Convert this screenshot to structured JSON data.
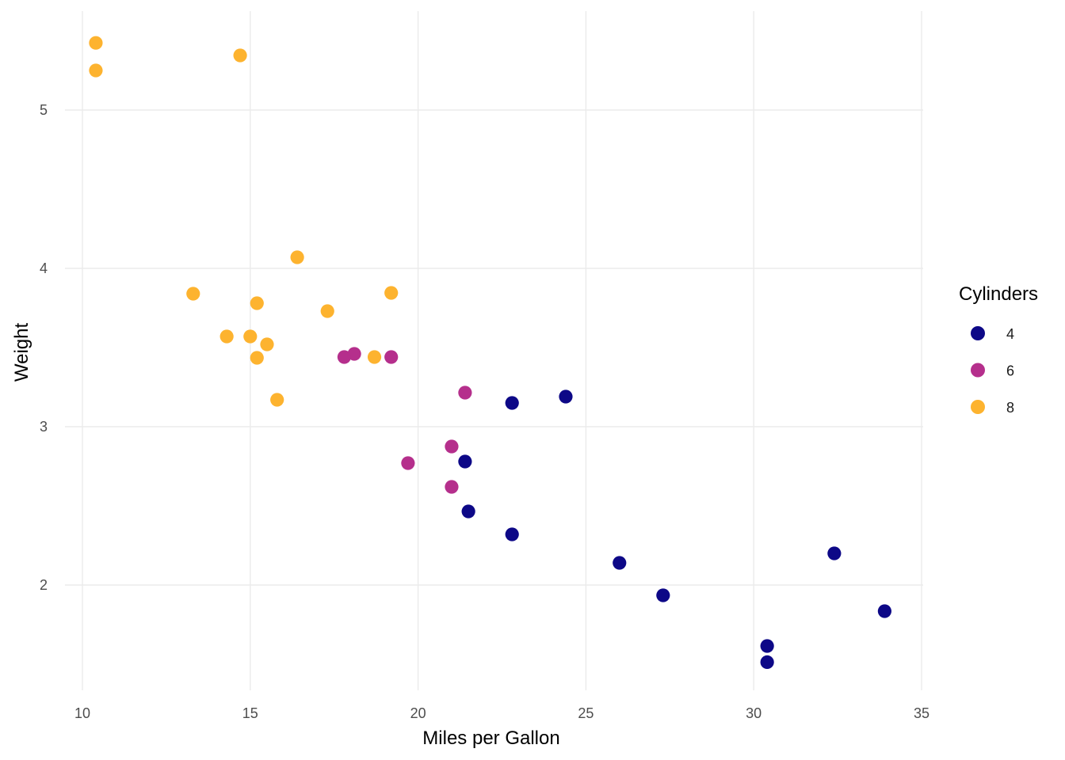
{
  "chart_data": {
    "type": "scatter",
    "title": "",
    "xlabel": "Miles per Gallon",
    "ylabel": "Weight",
    "xlim": [
      10,
      35
    ],
    "ylim": [
      1.3,
      5.55
    ],
    "x_ticks": [
      "10",
      "15",
      "20",
      "25",
      "30",
      "35"
    ],
    "y_ticks": [
      "2",
      "3",
      "4",
      "5"
    ],
    "grid": true,
    "legend": {
      "title": "Cylinders",
      "position": "right"
    },
    "series": [
      {
        "name": "4",
        "color": "#0d0887",
        "points": [
          [
            22.8,
            2.32
          ],
          [
            24.4,
            3.19
          ],
          [
            22.8,
            3.15
          ],
          [
            32.4,
            2.2
          ],
          [
            30.4,
            1.615
          ],
          [
            33.9,
            1.835
          ],
          [
            21.5,
            2.465
          ],
          [
            27.3,
            1.935
          ],
          [
            26.0,
            2.14
          ],
          [
            30.4,
            1.513
          ],
          [
            21.4,
            2.78
          ]
        ]
      },
      {
        "name": "6",
        "color": "#b52f8c",
        "points": [
          [
            21.0,
            2.62
          ],
          [
            21.0,
            2.875
          ],
          [
            21.4,
            3.215
          ],
          [
            18.1,
            3.46
          ],
          [
            19.2,
            3.44
          ],
          [
            17.8,
            3.44
          ],
          [
            19.7,
            2.77
          ]
        ]
      },
      {
        "name": "8",
        "color": "#fdb32f",
        "points": [
          [
            18.7,
            3.44
          ],
          [
            14.3,
            3.57
          ],
          [
            16.4,
            4.07
          ],
          [
            17.3,
            3.73
          ],
          [
            15.2,
            3.78
          ],
          [
            10.4,
            5.25
          ],
          [
            10.4,
            5.424
          ],
          [
            14.7,
            5.345
          ],
          [
            15.5,
            3.52
          ],
          [
            15.2,
            3.435
          ],
          [
            13.3,
            3.84
          ],
          [
            19.2,
            3.845
          ],
          [
            15.8,
            3.17
          ],
          [
            15.0,
            3.57
          ]
        ]
      }
    ]
  }
}
